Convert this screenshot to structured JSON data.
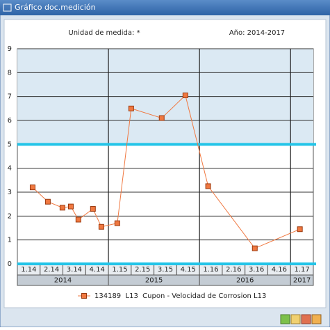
{
  "window": {
    "title": "Gráfico doc.medición"
  },
  "chart_data": {
    "type": "line",
    "header_left": "Unidad de medida: *",
    "header_right": "Año: 2014-2017",
    "x_groups": [
      {
        "label": "2014",
        "categories": [
          "1.14",
          "2.14",
          "3.14",
          "4.14"
        ]
      },
      {
        "label": "2015",
        "categories": [
          "1.15",
          "2.15",
          "3.15",
          "4.15"
        ]
      },
      {
        "label": "2016",
        "categories": [
          "1.16",
          "2.16",
          "3.16",
          "4.16"
        ]
      },
      {
        "label": "2017",
        "categories": [
          "1.17"
        ]
      }
    ],
    "xlim": [
      0,
      13
    ],
    "ylim": [
      0,
      9
    ],
    "yticks": [
      0,
      1,
      2,
      3,
      4,
      5,
      6,
      7,
      8,
      9
    ],
    "grid": true,
    "limit_lines": [
      5,
      0
    ],
    "limit_color": "#22c4e8",
    "series": [
      {
        "name": "134189  L13  Cupon - Velocidad de Corrosion L13",
        "color": "#f07840",
        "x": [
          0.67,
          1.34,
          1.98,
          2.35,
          2.68,
          3.32,
          3.69,
          4.39,
          5.0,
          6.34,
          7.38,
          8.38,
          10.43,
          12.41
        ],
        "values": [
          3.2,
          2.6,
          2.35,
          2.4,
          1.85,
          2.3,
          1.55,
          1.7,
          6.5,
          6.1,
          7.05,
          3.25,
          0.65,
          1.45
        ]
      }
    ]
  }
}
